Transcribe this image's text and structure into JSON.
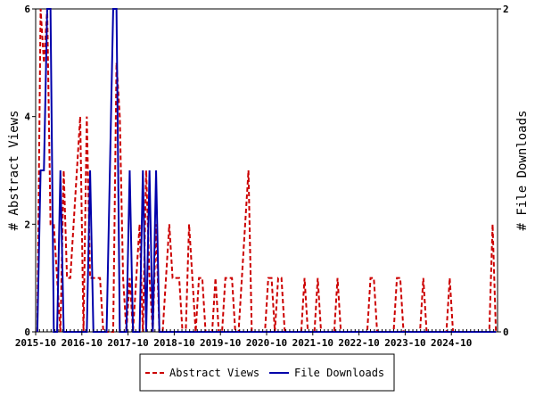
{
  "chart_data": {
    "type": "line",
    "title": "",
    "x_ticks": [
      "2015-10",
      "2016-10",
      "2017-10",
      "2018-10",
      "2019-10",
      "2020-10",
      "2021-10",
      "2022-10",
      "2023-10",
      "2024-10"
    ],
    "x_range": [
      "2015-10",
      "2025-09"
    ],
    "y_left": {
      "label": "# Abstract Views",
      "range": [
        0,
        6
      ],
      "ticks": [
        "0",
        "2",
        "4",
        "6"
      ]
    },
    "y_right": {
      "label": "# File Downloads",
      "range": [
        0,
        2
      ],
      "ticks": [
        "0",
        "2"
      ]
    },
    "grid": false,
    "legend_position": "bottom",
    "series": [
      {
        "name": "Abstract Views",
        "axis": "left",
        "color": "#cc0000",
        "style": "dashed",
        "values": [
          0,
          6,
          5,
          6,
          2,
          2,
          1,
          0,
          3,
          1,
          1,
          2,
          3,
          4,
          0,
          4,
          1,
          1,
          1,
          1,
          0,
          0,
          0,
          0,
          5,
          4,
          1,
          0,
          1,
          0,
          1,
          2,
          0,
          3,
          1,
          0,
          2,
          0,
          0,
          1,
          2,
          1,
          1,
          1,
          0,
          0,
          2,
          1,
          0,
          1,
          1,
          0,
          0,
          0,
          1,
          0,
          0,
          1,
          1,
          1,
          0,
          0,
          1,
          2,
          3,
          0,
          0,
          0,
          0,
          0,
          1,
          1,
          0,
          1,
          1,
          0,
          0,
          0,
          0,
          0,
          0,
          1,
          0,
          0,
          0,
          1,
          0,
          0,
          0,
          0,
          0,
          1,
          0,
          0,
          0,
          0,
          0,
          0,
          0,
          0,
          0,
          1,
          1,
          0,
          0,
          0,
          0,
          0,
          0,
          1,
          1,
          0,
          0,
          0,
          0,
          0,
          0,
          1,
          0,
          0,
          0,
          0,
          0,
          0,
          0,
          1,
          0,
          0,
          0,
          0,
          0,
          0,
          0,
          0,
          0,
          0,
          0,
          0,
          2,
          0
        ]
      },
      {
        "name": "File Downloads",
        "axis": "right",
        "color": "#0000aa",
        "style": "solid",
        "values": [
          0,
          1,
          1,
          2,
          2,
          0,
          0,
          1,
          0,
          0,
          0,
          0,
          0,
          0,
          0,
          0,
          1,
          0,
          0,
          0,
          0,
          0,
          1,
          2,
          2,
          0,
          0,
          0,
          1,
          0,
          0,
          0,
          1,
          0,
          1,
          0,
          1,
          0,
          0,
          0,
          0,
          0,
          0,
          0,
          0,
          0,
          0,
          0,
          0,
          0,
          0,
          0,
          0,
          0,
          0,
          0,
          0,
          0,
          0,
          0,
          0,
          0,
          0,
          0,
          0,
          0,
          0,
          0,
          0,
          0,
          0,
          0,
          0,
          0,
          0,
          0,
          0,
          0,
          0,
          0,
          0,
          0,
          0,
          0,
          0,
          0,
          0,
          0,
          0,
          0,
          0,
          0,
          0,
          0,
          0,
          0,
          0,
          0,
          0,
          0,
          0,
          0,
          0,
          0,
          0,
          0,
          0,
          0,
          0,
          0,
          0,
          0,
          0,
          0,
          0,
          0,
          0,
          0,
          0,
          0,
          0,
          0,
          0,
          0,
          0,
          0,
          0,
          0,
          0,
          0,
          0,
          0,
          0,
          0,
          0,
          0,
          0,
          0,
          0,
          0
        ]
      }
    ]
  }
}
